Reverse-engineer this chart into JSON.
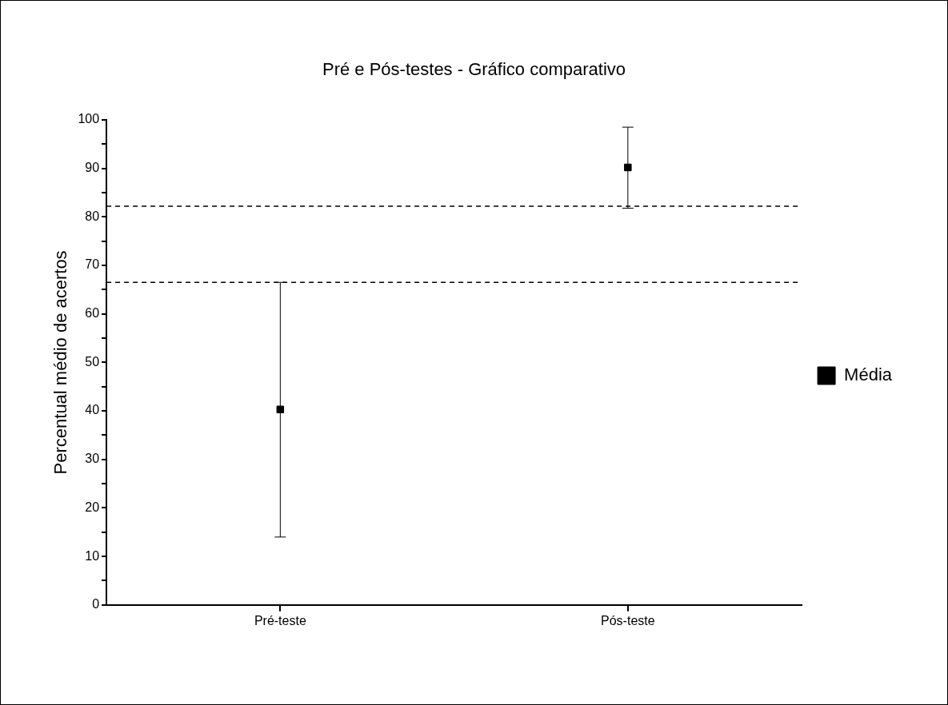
{
  "chart_data": {
    "type": "scatter",
    "title": "Pré e Pós-testes - Gráfico comparativo",
    "ylabel": "Percentual médio de acertos",
    "categories": [
      "Pré-teste",
      "Pós-teste"
    ],
    "series": [
      {
        "name": "Média",
        "color": "#000000",
        "values": [
          40.3,
          90.2
        ],
        "errors": [
          [
            14,
            66.5
          ],
          [
            81.8,
            98.5
          ]
        ]
      }
    ],
    "ylim": [
      0,
      100
    ],
    "yticks": [
      0,
      {
        "value": 5,
        "label": null
      },
      10,
      {
        "value": 15,
        "label": null
      },
      20,
      {
        "value": 25,
        "label": null
      },
      30,
      {
        "value": 35,
        "label": null
      },
      40,
      {
        "value": 45,
        "label": null
      },
      50,
      {
        "value": 55,
        "label": null
      },
      60,
      {
        "value": 65,
        "label": null
      },
      70,
      {
        "value": 75,
        "label": null
      },
      80,
      {
        "value": 85,
        "label": null
      },
      90,
      {
        "value": 95,
        "label": null
      },
      100
    ],
    "ref_lines": [
      {
        "axis": "y",
        "value": 82.2,
        "line_style": "dashed",
        "color": "#000000"
      },
      {
        "axis": "y",
        "value": 66.5,
        "line_style": "dashed",
        "color": "#000000"
      }
    ],
    "grid": false,
    "legend": "right",
    "marker": "square"
  }
}
